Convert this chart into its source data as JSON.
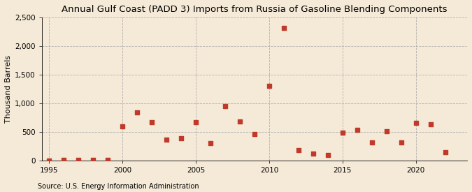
{
  "title": "Annual Gulf Coast (PADD 3) Imports from Russia of Gasoline Blending Components",
  "ylabel": "Thousand Barrels",
  "source": "Source: U.S. Energy Information Administration",
  "background_color": "#f5ead7",
  "years": [
    1995,
    1996,
    1997,
    1998,
    1999,
    2000,
    2001,
    2002,
    2003,
    2004,
    2005,
    2006,
    2007,
    2008,
    2009,
    2010,
    2011,
    2012,
    2013,
    2014,
    2015,
    2016,
    2017,
    2018,
    2019,
    2020,
    2021,
    2022
  ],
  "values": [
    2,
    5,
    10,
    5,
    5,
    600,
    840,
    670,
    370,
    390,
    670,
    300,
    950,
    680,
    460,
    1300,
    2320,
    180,
    120,
    100,
    490,
    540,
    310,
    510,
    310,
    660,
    630,
    140
  ],
  "marker_color": "#c0392b",
  "marker_size": 18,
  "ylim": [
    0,
    2500
  ],
  "yticks": [
    0,
    500,
    1000,
    1500,
    2000,
    2500
  ],
  "xlim": [
    1994.5,
    2023.5
  ],
  "xticks": [
    1995,
    2000,
    2005,
    2010,
    2015,
    2020
  ],
  "grid_color": "#aaaaaa",
  "title_fontsize": 9.5,
  "axis_fontsize": 8,
  "tick_fontsize": 7.5,
  "source_fontsize": 7
}
